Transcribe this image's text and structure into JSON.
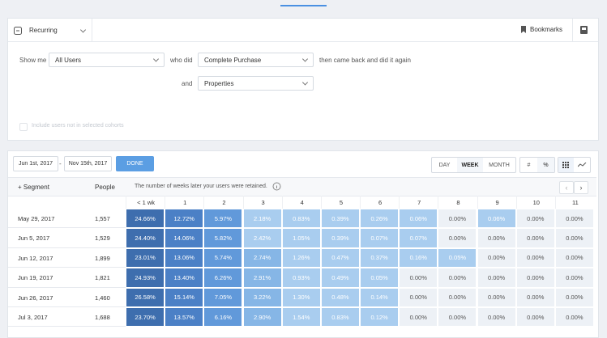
{
  "toolbar": {
    "report": "Recurring",
    "bookmarks": "Bookmarks"
  },
  "query": {
    "show_me_label": "Show me",
    "audience": "All Users",
    "who_did_label": "who did",
    "event": "Complete Purchase",
    "then_label": "then came back and did it again",
    "and_label": "and",
    "properties": "Properties",
    "include_label": "Include users not in selected cohorts"
  },
  "controls": {
    "start_date": "Jun 1st, 2017",
    "dash": "-",
    "end_date": "Nov 15th, 2017",
    "done": "DONE",
    "granularity": [
      "DAY",
      "WEEK",
      "MONTH"
    ],
    "value_modes": [
      "#",
      "%"
    ]
  },
  "table": {
    "segment_header": "+ Segment",
    "people_header": "People",
    "note": "The number of weeks later your users were retained.",
    "columns": [
      "< 1 wk",
      "1",
      "2",
      "3",
      "4",
      "5",
      "6",
      "7",
      "8",
      "9",
      "10",
      "11"
    ],
    "rows": [
      {
        "segment": "May 29, 2017",
        "people": "1,557",
        "values": [
          "24.66%",
          "12.72%",
          "5.97%",
          "2.18%",
          "0.83%",
          "0.39%",
          "0.26%",
          "0.06%",
          "0.00%",
          "0.06%",
          "0.00%",
          "0.00%"
        ]
      },
      {
        "segment": "Jun 5, 2017",
        "people": "1,529",
        "values": [
          "24.40%",
          "14.06%",
          "5.82%",
          "2.42%",
          "1.05%",
          "0.39%",
          "0.07%",
          "0.07%",
          "0.00%",
          "0.00%",
          "0.00%",
          "0.00%"
        ]
      },
      {
        "segment": "Jun 12, 2017",
        "people": "1,899",
        "values": [
          "23.01%",
          "13.06%",
          "5.74%",
          "2.74%",
          "1.26%",
          "0.47%",
          "0.37%",
          "0.16%",
          "0.05%",
          "0.00%",
          "0.00%",
          "0.00%"
        ]
      },
      {
        "segment": "Jun 19, 2017",
        "people": "1,821",
        "values": [
          "24.93%",
          "13.40%",
          "6.26%",
          "2.91%",
          "0.93%",
          "0.49%",
          "0.05%",
          "0.00%",
          "0.00%",
          "0.00%",
          "0.00%",
          "0.00%"
        ]
      },
      {
        "segment": "Jun 26, 2017",
        "people": "1,460",
        "values": [
          "26.58%",
          "15.14%",
          "7.05%",
          "3.22%",
          "1.30%",
          "0.48%",
          "0.14%",
          "0.00%",
          "0.00%",
          "0.00%",
          "0.00%",
          "0.00%"
        ]
      },
      {
        "segment": "Jul 3, 2017",
        "people": "1,688",
        "values": [
          "23.70%",
          "13.57%",
          "6.16%",
          "2.90%",
          "1.54%",
          "0.83%",
          "0.12%",
          "0.00%",
          "0.00%",
          "0.00%",
          "0.00%",
          "0.00%"
        ]
      }
    ]
  }
}
